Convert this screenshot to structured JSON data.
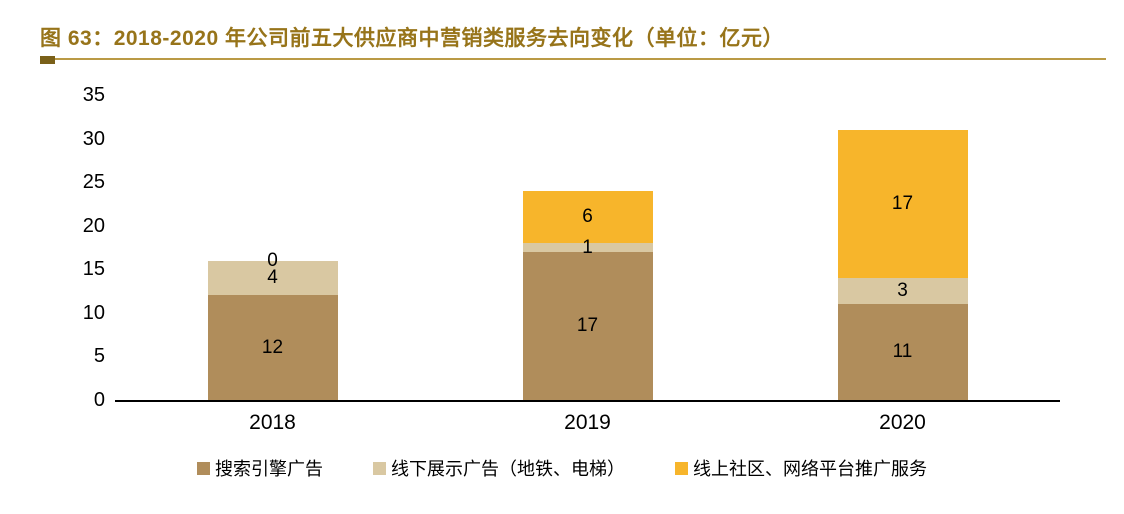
{
  "header": {
    "title": "图 63：2018-2020 年公司前五大供应商中营销类服务去向变化（单位：亿元）"
  },
  "colors": {
    "title_text": "#97741A",
    "rule_line": "#BA9A45",
    "rule_tab": "#7A6019",
    "axis_line": "#000000"
  },
  "chart_data": {
    "type": "bar",
    "stacked": true,
    "title": "2018-2020 年公司前五大供应商中营销类服务去向变化",
    "unit_label": "亿元",
    "categories": [
      "2018",
      "2019",
      "2020"
    ],
    "series": [
      {
        "name": "搜索引擎广告",
        "color": "#B08D5B",
        "values": [
          12,
          17,
          11
        ]
      },
      {
        "name": "线下展示广告（地铁、电梯）",
        "color": "#D9C8A2",
        "values": [
          4,
          1,
          3
        ]
      },
      {
        "name": "线上社区、网络平台推广服务",
        "color": "#F7B52B",
        "values": [
          0,
          6,
          17
        ]
      }
    ],
    "ylim": [
      0,
      35
    ],
    "yticks": [
      0,
      5,
      10,
      15,
      20,
      25,
      30,
      35
    ],
    "xlabel": "",
    "ylabel": "",
    "grid": false,
    "data_labels": true,
    "legend_position": "bottom"
  }
}
